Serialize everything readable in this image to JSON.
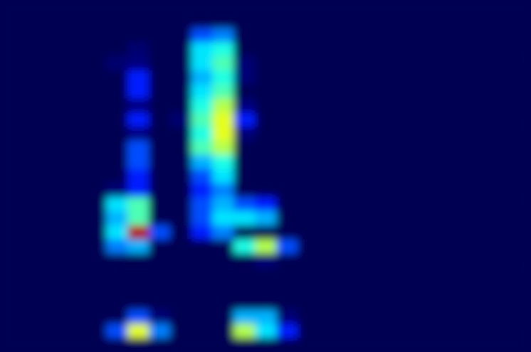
{
  "chart_data": {
    "type": "heatmap",
    "tick_labels": false,
    "zlim": [
      0,
      1
    ],
    "values": [
      [
        0,
        0,
        0,
        0,
        0,
        0,
        0,
        0,
        0,
        0,
        0,
        0,
        0,
        0,
        0,
        0,
        0,
        0,
        0,
        0,
        0,
        0,
        0,
        0,
        0
      ],
      [
        0,
        0,
        0,
        0,
        0,
        0,
        0,
        0,
        0,
        0,
        0,
        0,
        0,
        0,
        0,
        0,
        0,
        0,
        0,
        0,
        0,
        0,
        0,
        0,
        0
      ],
      [
        0,
        0,
        0,
        0,
        0,
        0,
        0,
        0,
        0,
        0.2,
        0.25,
        0,
        0,
        0,
        0,
        0,
        0,
        0,
        0,
        0,
        0,
        0,
        0,
        0,
        0
      ],
      [
        0,
        0,
        0,
        0,
        0,
        0,
        0.08,
        0,
        0,
        0.35,
        0.4,
        0,
        0,
        0,
        0,
        0,
        0,
        0,
        0,
        0,
        0,
        0,
        0,
        0,
        0
      ],
      [
        0,
        0,
        0,
        0,
        0,
        0.08,
        0.12,
        0,
        0,
        0.35,
        0.45,
        0.1,
        0,
        0,
        0,
        0,
        0,
        0,
        0,
        0,
        0,
        0,
        0,
        0,
        0
      ],
      [
        0,
        0,
        0,
        0,
        0,
        0,
        0.15,
        0,
        0,
        0.3,
        0.4,
        0.1,
        0,
        0,
        0,
        0,
        0,
        0,
        0,
        0,
        0,
        0,
        0,
        0,
        0
      ],
      [
        0,
        0,
        0,
        0,
        0,
        0,
        0.15,
        0,
        0,
        0.35,
        0.45,
        0,
        0,
        0,
        0,
        0,
        0,
        0,
        0,
        0,
        0,
        0,
        0,
        0,
        0
      ],
      [
        0,
        0,
        0,
        0,
        0,
        0,
        0.12,
        0,
        0,
        0.4,
        0.55,
        0.12,
        0,
        0,
        0,
        0,
        0,
        0,
        0,
        0,
        0,
        0,
        0,
        0,
        0
      ],
      [
        0,
        0,
        0,
        0,
        0,
        0,
        0.15,
        0,
        0.08,
        0.45,
        0.6,
        0.15,
        0,
        0,
        0,
        0,
        0,
        0,
        0,
        0,
        0,
        0,
        0,
        0,
        0
      ],
      [
        0,
        0,
        0,
        0,
        0,
        0,
        0.12,
        0,
        0,
        0.4,
        0.6,
        0.1,
        0,
        0,
        0,
        0,
        0,
        0,
        0,
        0,
        0,
        0,
        0,
        0,
        0
      ],
      [
        0,
        0,
        0,
        0,
        0,
        0,
        0.2,
        0,
        0,
        0.45,
        0.55,
        0,
        0,
        0,
        0,
        0,
        0,
        0,
        0,
        0,
        0,
        0,
        0,
        0,
        0
      ],
      [
        0,
        0,
        0,
        0,
        0,
        0,
        0.2,
        0,
        0,
        0.3,
        0.4,
        0,
        0,
        0,
        0,
        0,
        0,
        0,
        0,
        0,
        0,
        0,
        0,
        0,
        0
      ],
      [
        0,
        0,
        0,
        0,
        0,
        0,
        0.15,
        0,
        0,
        0.2,
        0.35,
        0,
        0,
        0,
        0,
        0,
        0,
        0,
        0,
        0,
        0,
        0,
        0,
        0,
        0
      ],
      [
        0,
        0,
        0,
        0,
        0,
        0.1,
        0.15,
        0,
        0,
        0.15,
        0.25,
        0,
        0,
        0,
        0,
        0,
        0,
        0,
        0,
        0,
        0,
        0,
        0,
        0,
        0
      ],
      [
        0,
        0,
        0,
        0,
        0,
        0.35,
        0.45,
        0,
        0,
        0.2,
        0.3,
        0.2,
        0.15,
        0,
        0,
        0,
        0,
        0,
        0,
        0,
        0,
        0,
        0,
        0,
        0
      ],
      [
        0,
        0,
        0,
        0,
        0,
        0.3,
        0.45,
        0,
        0,
        0.2,
        0.35,
        0.35,
        0.3,
        0,
        0,
        0,
        0,
        0,
        0,
        0,
        0,
        0,
        0,
        0,
        0
      ],
      [
        0,
        0,
        0,
        0,
        0,
        0.35,
        0.95,
        0.2,
        0,
        0.15,
        0.25,
        0,
        0,
        0,
        0,
        0,
        0,
        0,
        0,
        0,
        0,
        0,
        0,
        0,
        0
      ],
      [
        0,
        0,
        0,
        0,
        0,
        0.25,
        0.3,
        0,
        0,
        0,
        0,
        0.4,
        0.55,
        0.2,
        0,
        0,
        0,
        0,
        0,
        0,
        0,
        0,
        0,
        0,
        0
      ],
      [
        0,
        0,
        0,
        0,
        0,
        0,
        0,
        0,
        0,
        0,
        0,
        0,
        0.1,
        0,
        0,
        0,
        0,
        0,
        0,
        0,
        0,
        0,
        0,
        0,
        0
      ],
      [
        0,
        0,
        0,
        0,
        0,
        0,
        0,
        0,
        0,
        0,
        0,
        0,
        0,
        0,
        0,
        0,
        0,
        0,
        0,
        0,
        0,
        0,
        0,
        0,
        0
      ],
      [
        0,
        0,
        0,
        0,
        0,
        0,
        0,
        0,
        0,
        0,
        0,
        0,
        0,
        0,
        0,
        0,
        0,
        0,
        0,
        0,
        0,
        0,
        0,
        0,
        0
      ],
      [
        0,
        0,
        0,
        0,
        0,
        0,
        0,
        0,
        0,
        0,
        0,
        0,
        0,
        0,
        0,
        0,
        0,
        0,
        0,
        0,
        0,
        0,
        0,
        0,
        0
      ],
      [
        0,
        0,
        0,
        0,
        0,
        0,
        0.2,
        0.1,
        0,
        0,
        0,
        0.3,
        0.3,
        0.1,
        0,
        0,
        0,
        0,
        0,
        0,
        0,
        0,
        0,
        0,
        0
      ],
      [
        0,
        0,
        0,
        0,
        0,
        0.2,
        0.6,
        0.25,
        0,
        0,
        0,
        0.55,
        0.35,
        0.15,
        0,
        0,
        0,
        0,
        0,
        0,
        0,
        0,
        0,
        0,
        0
      ],
      [
        0,
        0,
        0,
        0,
        0,
        0,
        0,
        0,
        0,
        0,
        0,
        0,
        0,
        0,
        0,
        0,
        0,
        0,
        0,
        0,
        0,
        0,
        0,
        0,
        0
      ]
    ]
  }
}
